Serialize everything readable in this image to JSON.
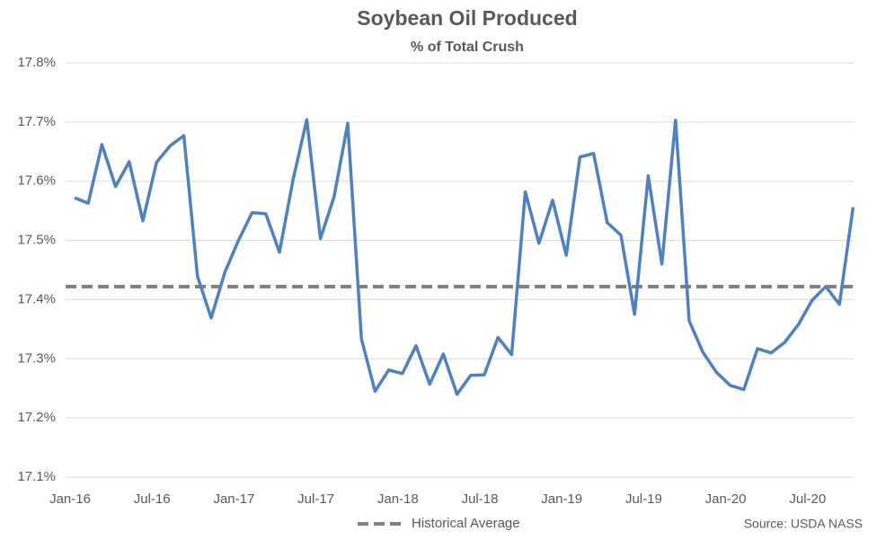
{
  "chart_data": {
    "type": "line",
    "title": "Soybean Oil Produced",
    "subtitle": "% of Total Crush",
    "categories": [
      "Jan-16",
      null,
      null,
      null,
      null,
      null,
      "Jul-16",
      null,
      null,
      null,
      null,
      null,
      "Jan-17",
      null,
      null,
      null,
      null,
      null,
      "Jul-17",
      null,
      null,
      null,
      null,
      null,
      "Jan-18",
      null,
      null,
      null,
      null,
      null,
      "Jul-18",
      null,
      null,
      null,
      null,
      null,
      "Jan-19",
      null,
      null,
      null,
      null,
      null,
      "Jul-19",
      null,
      null,
      null,
      null,
      null,
      "Jan-20",
      null,
      null,
      null,
      null,
      null,
      "Jul-20",
      null,
      null,
      null
    ],
    "series": [
      {
        "color": "#4f81bd",
        "values": [
          17.572,
          17.563,
          17.662,
          17.591,
          17.633,
          17.533,
          17.632,
          17.66,
          17.677,
          17.439,
          17.369,
          17.446,
          17.5,
          17.547,
          17.545,
          17.48,
          17.603,
          17.704,
          17.503,
          17.574,
          17.698,
          17.334,
          17.245,
          17.281,
          17.275,
          17.322,
          17.257,
          17.308,
          17.24,
          17.272,
          17.273,
          17.336,
          17.307,
          17.582,
          17.495,
          17.568,
          17.475,
          17.641,
          17.647,
          17.53,
          17.509,
          17.375,
          17.609,
          17.46,
          17.703,
          17.364,
          17.311,
          17.277,
          17.255,
          17.248,
          17.317,
          17.31,
          17.328,
          17.358,
          17.399,
          17.422,
          17.392,
          17.556
        ]
      }
    ],
    "reference_line": {
      "name": "Historical Average",
      "value": 17.422,
      "color": "#808080"
    },
    "ylim": [
      17.1,
      17.8
    ],
    "yticks": [
      {
        "value": 17.1,
        "label": "17.1%"
      },
      {
        "value": 17.2,
        "label": "17.2%"
      },
      {
        "value": 17.3,
        "label": "17.3%"
      },
      {
        "value": 17.4,
        "label": "17.4%"
      },
      {
        "value": 17.5,
        "label": "17.5%"
      },
      {
        "value": 17.6,
        "label": "17.6%"
      },
      {
        "value": 17.7,
        "label": "17.7%"
      },
      {
        "value": 17.8,
        "label": "17.8%"
      }
    ],
    "grid": true,
    "legend": "bottom",
    "source": "Source: USDA NASS"
  }
}
